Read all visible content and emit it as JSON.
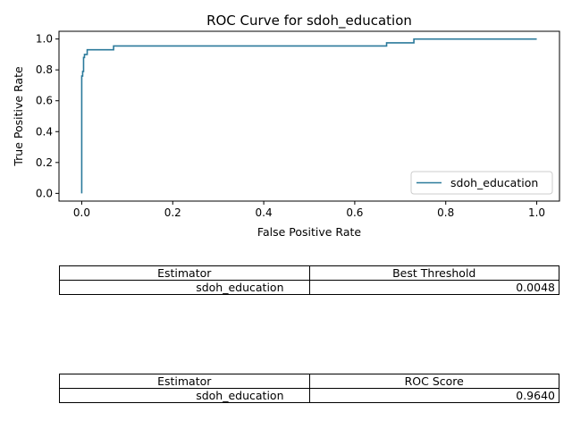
{
  "chart_data": {
    "type": "line",
    "title": "ROC Curve for sdoh_education",
    "xlabel": "False Positive Rate",
    "ylabel": "True Positive Rate",
    "xlim": [
      -0.05,
      1.05
    ],
    "ylim": [
      -0.05,
      1.05
    ],
    "xticks": [
      "0.0",
      "0.2",
      "0.4",
      "0.6",
      "0.8",
      "1.0"
    ],
    "yticks": [
      "0.0",
      "0.2",
      "0.4",
      "0.6",
      "0.8",
      "1.0"
    ],
    "grid": false,
    "legend": "lower-right",
    "series": [
      {
        "name": "sdoh_education",
        "color": "#2b7a9b",
        "x": [
          0.0,
          0.0,
          0.002,
          0.002,
          0.004,
          0.004,
          0.006,
          0.006,
          0.012,
          0.012,
          0.07,
          0.07,
          0.67,
          0.67,
          0.73,
          0.73,
          1.0
        ],
        "y": [
          0.0,
          0.76,
          0.76,
          0.79,
          0.79,
          0.88,
          0.88,
          0.9,
          0.9,
          0.93,
          0.93,
          0.955,
          0.955,
          0.975,
          0.975,
          1.0,
          1.0
        ]
      }
    ]
  },
  "tables": [
    {
      "headers": [
        "Estimator",
        "Best Threshold"
      ],
      "row": [
        "sdoh_education",
        "0.0048"
      ]
    },
    {
      "headers": [
        "Estimator",
        "ROC Score"
      ],
      "row": [
        "sdoh_education",
        "0.9640"
      ]
    }
  ]
}
